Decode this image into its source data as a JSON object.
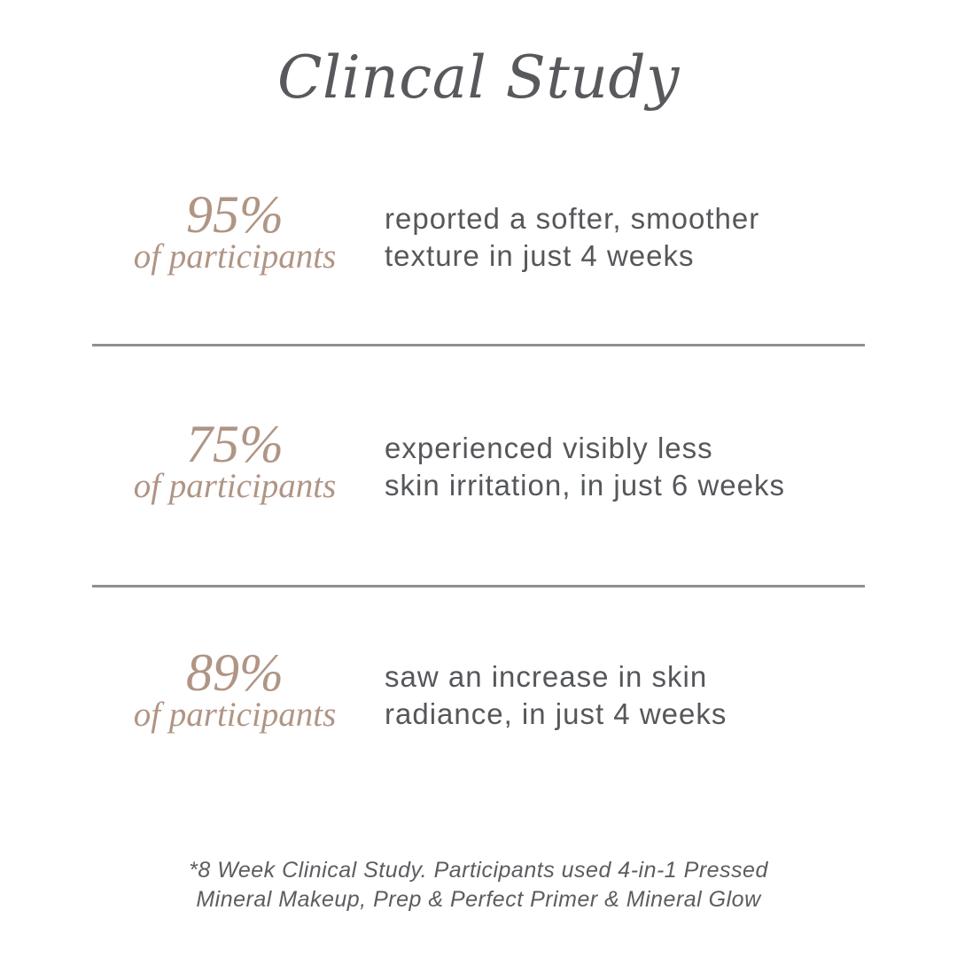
{
  "title": "Clincal Study",
  "stats": [
    {
      "percent": "95%",
      "subtitle": "of participants",
      "line1": "reported a softer, smoother",
      "line2": "texture in just 4 weeks"
    },
    {
      "percent": "75%",
      "subtitle": "of participants",
      "line1": "experienced visibly less",
      "line2": "skin irritation, in just 6 weeks"
    },
    {
      "percent": "89%",
      "subtitle": "of participants",
      "line1": "saw an increase in skin",
      "line2": "radiance, in just 4 weeks"
    }
  ],
  "footnote": {
    "line1": "*8 Week Clinical Study. Participants used 4-in-1 Pressed",
    "line2": "Mineral Makeup, Prep & Perfect Primer & Mineral Glow"
  },
  "colors": {
    "accent": "#b09585",
    "text": "#55575a",
    "divider": "#8f8f8f",
    "background": "#ffffff"
  }
}
